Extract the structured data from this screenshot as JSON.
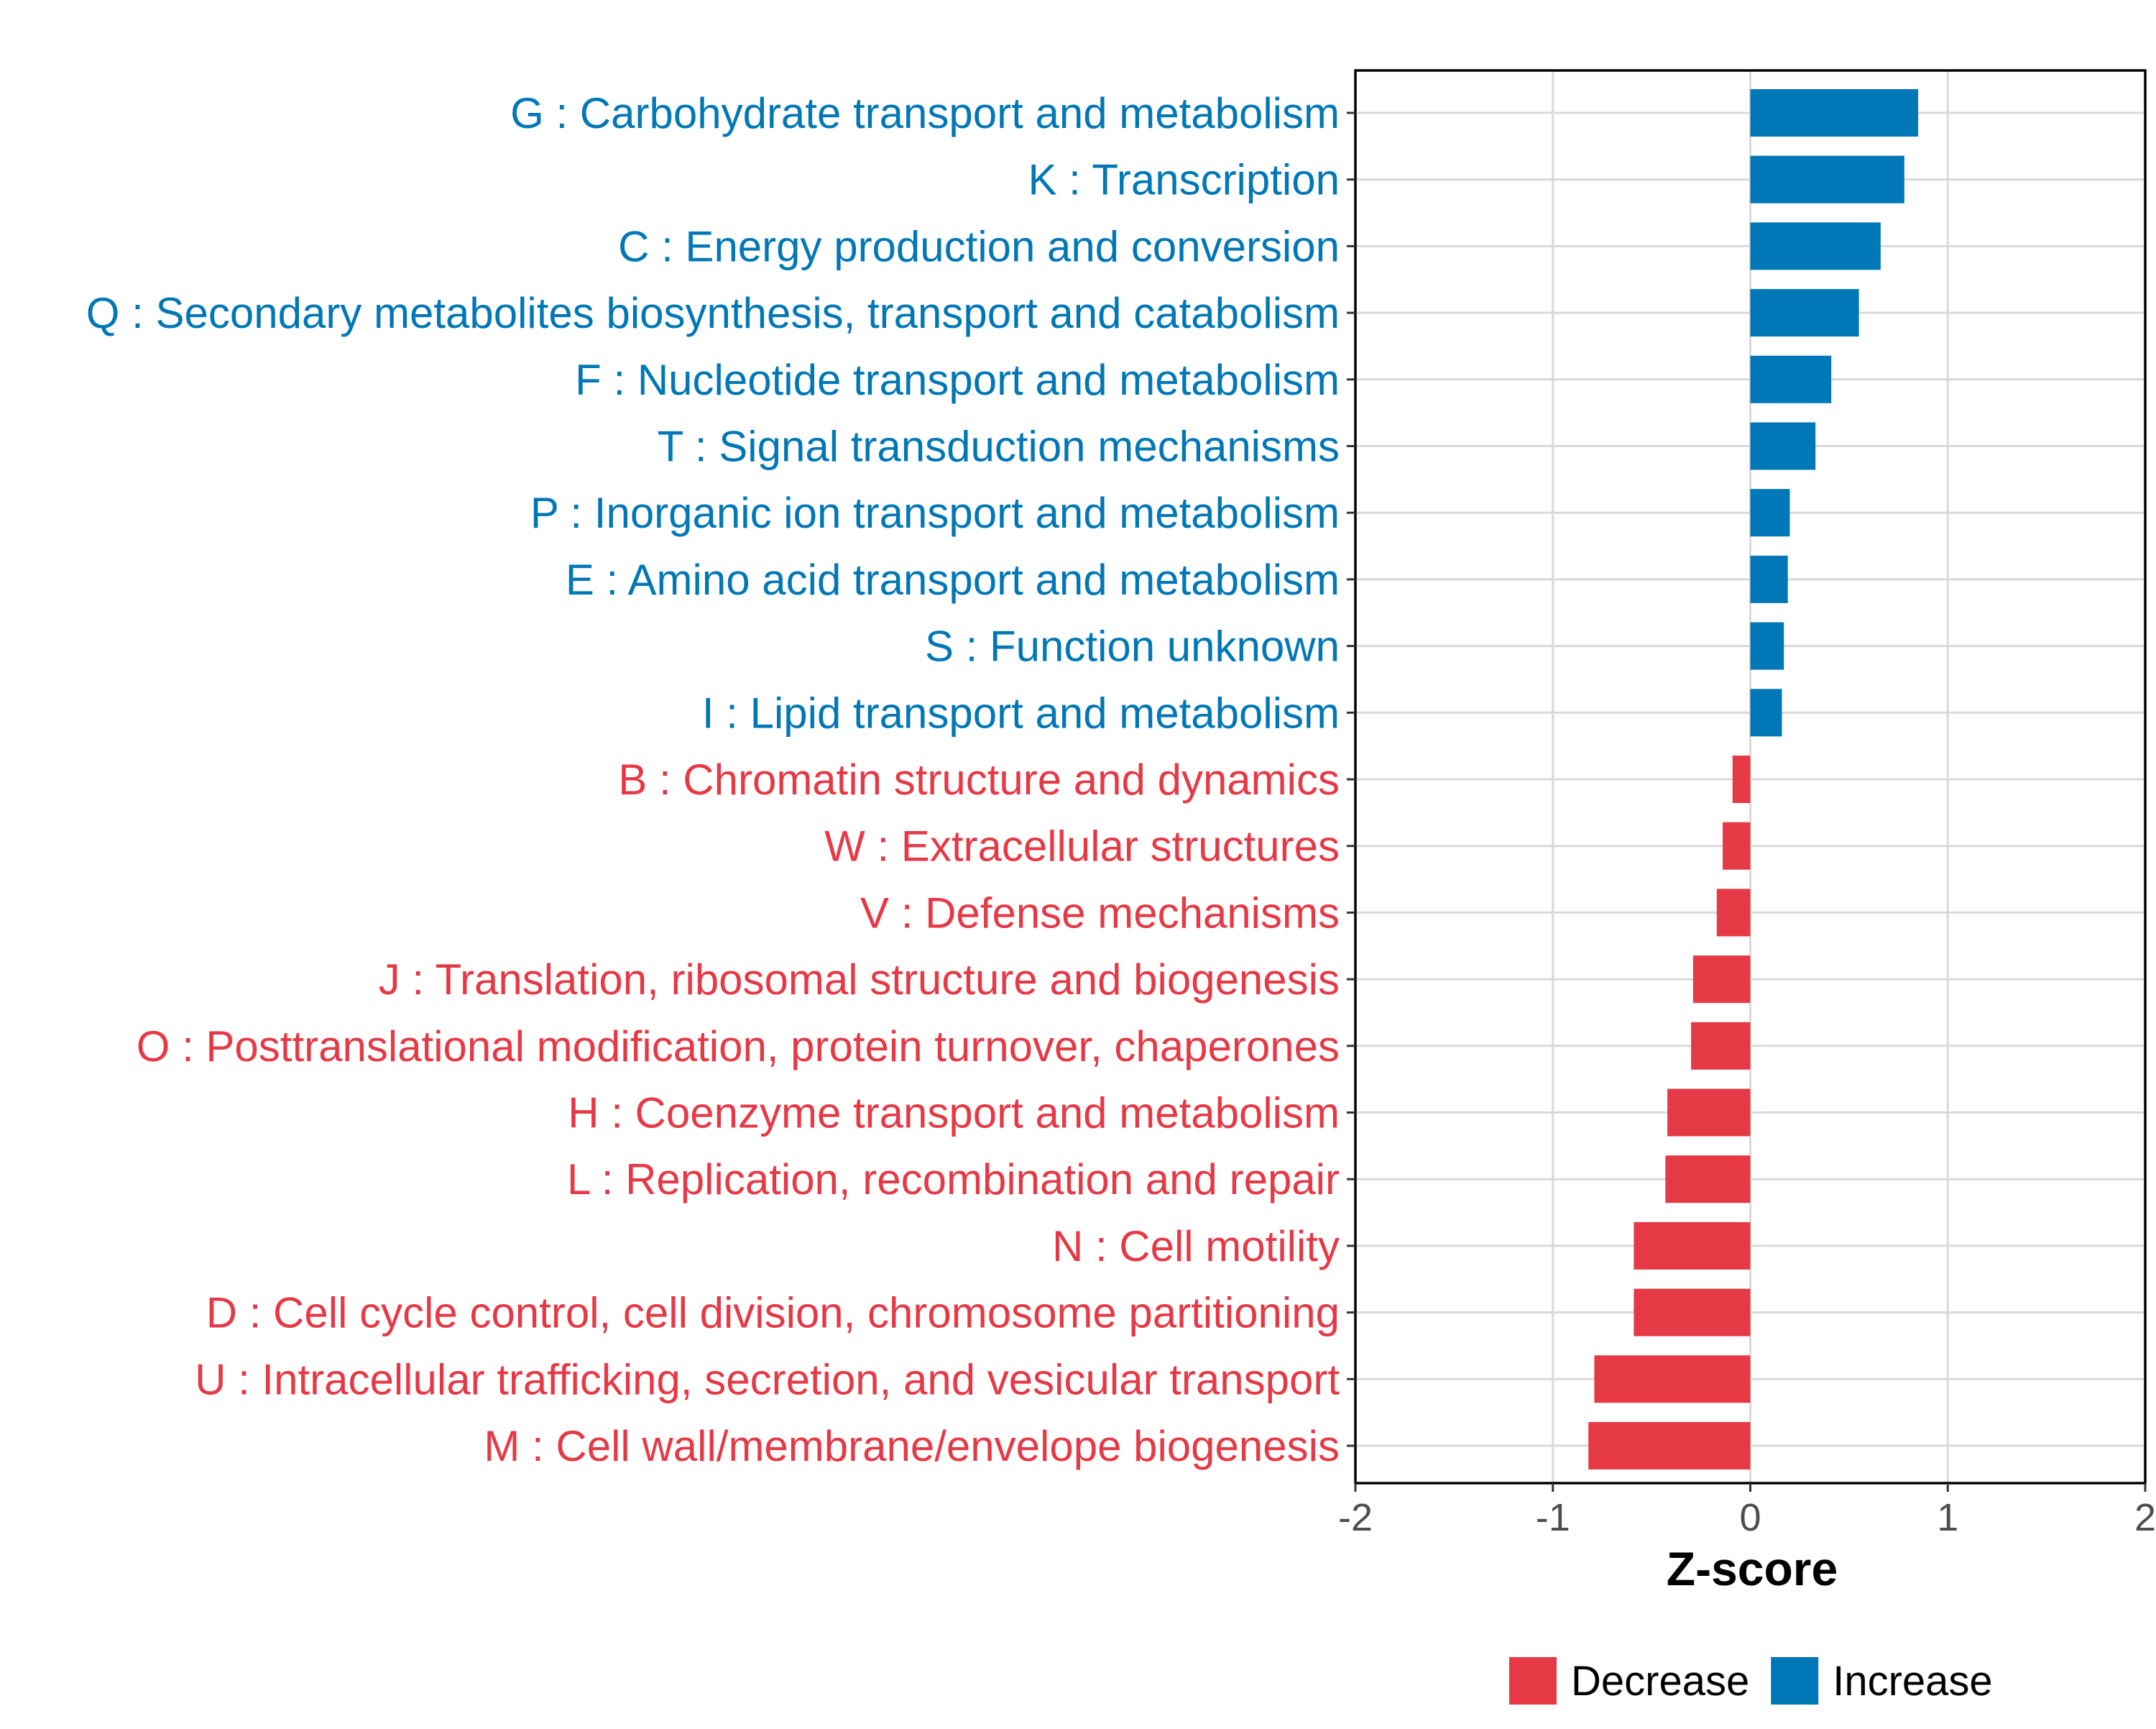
{
  "chart_data": {
    "type": "bar",
    "orientation": "horizontal",
    "xlabel": "Z-score",
    "ylabel": "",
    "xlim": [
      -2,
      2
    ],
    "xticks": [
      -2,
      -1,
      0,
      1,
      2
    ],
    "xtick_labels": [
      "-2",
      "-1",
      "0",
      "1",
      "2"
    ],
    "grid": true,
    "legend_position": "bottom",
    "colors": {
      "Decrease": "#E63946",
      "Increase": "#0077B6"
    },
    "legend": [
      {
        "label": "Decrease",
        "color": "#E63946"
      },
      {
        "label": "Increase",
        "color": "#0077B6"
      }
    ],
    "categories": [
      "G : Carbohydrate transport and metabolism",
      "K : Transcription",
      "C : Energy production and conversion",
      "Q : Secondary metabolites biosynthesis, transport and catabolism",
      "F : Nucleotide transport and metabolism",
      "T : Signal transduction mechanisms",
      "P : Inorganic ion transport and metabolism",
      "E : Amino acid transport and metabolism",
      "S : Function unknown",
      "I : Lipid transport and metabolism",
      "B : Chromatin structure and dynamics",
      "W : Extracellular structures",
      "V : Defense mechanisms",
      "J : Translation, ribosomal structure and biogenesis",
      "O : Posttranslational modification, protein turnover, chaperones",
      "H : Coenzyme transport and metabolism",
      "L : Replication, recombination and repair",
      "N : Cell motility",
      "D : Cell cycle control, cell division, chromosome partitioning",
      "U : Intracellular trafficking, secretion, and vesicular transport",
      "M : Cell wall/membrane/envelope biogenesis"
    ],
    "values": [
      0.85,
      0.78,
      0.66,
      0.55,
      0.41,
      0.33,
      0.2,
      0.19,
      0.17,
      0.16,
      -0.09,
      -0.14,
      -0.17,
      -0.29,
      -0.3,
      -0.42,
      -0.43,
      -0.59,
      -0.59,
      -0.79,
      -0.82
    ],
    "groups": [
      "Increase",
      "Increase",
      "Increase",
      "Increase",
      "Increase",
      "Increase",
      "Increase",
      "Increase",
      "Increase",
      "Increase",
      "Decrease",
      "Decrease",
      "Decrease",
      "Decrease",
      "Decrease",
      "Decrease",
      "Decrease",
      "Decrease",
      "Decrease",
      "Decrease",
      "Decrease"
    ]
  }
}
